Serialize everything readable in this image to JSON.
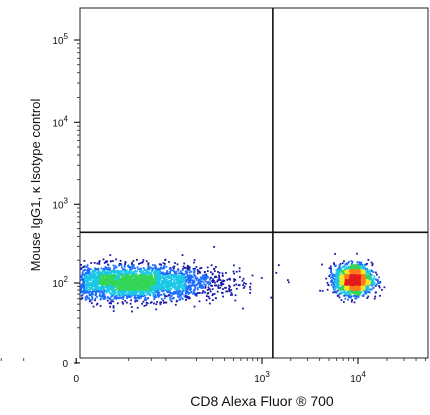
{
  "chart_data": {
    "type": "scatter",
    "title": "",
    "xlabel": "CD8 Alexa Fluor ® 700",
    "ylabel": "Mouse IgG1, κ Isotype control",
    "x_scale": "biexponential",
    "y_scale": "biexponential",
    "x_ticks": [
      {
        "value": 0,
        "base": "0",
        "exp": ""
      },
      {
        "value": 1000,
        "base": "10",
        "exp": "3"
      },
      {
        "value": 10000,
        "base": "10",
        "exp": "4"
      }
    ],
    "y_ticks": [
      {
        "value": 0,
        "base": "0",
        "exp": ""
      },
      {
        "value": 100,
        "base": "10",
        "exp": "2"
      },
      {
        "value": 1000,
        "base": "10",
        "exp": "3"
      },
      {
        "value": 10000,
        "base": "10",
        "exp": "4"
      },
      {
        "value": 100000,
        "base": "10",
        "exp": "5"
      }
    ],
    "quadrant_gates": {
      "x": 1300,
      "y": 450
    },
    "populations": [
      {
        "x_center": 30,
        "x_spread": 250,
        "y_center": 100,
        "y_spread": 60,
        "share": 0.66
      },
      {
        "x_center": 9000,
        "x_spread": 4500,
        "y_center": 110,
        "y_spread": 55,
        "share": 0.34
      }
    ],
    "colormap": [
      "#1a1aa8",
      "#1a6cff",
      "#19c8e6",
      "#34d655",
      "#f5e625",
      "#ff7a1a",
      "#e31a1c"
    ],
    "grid": false
  }
}
